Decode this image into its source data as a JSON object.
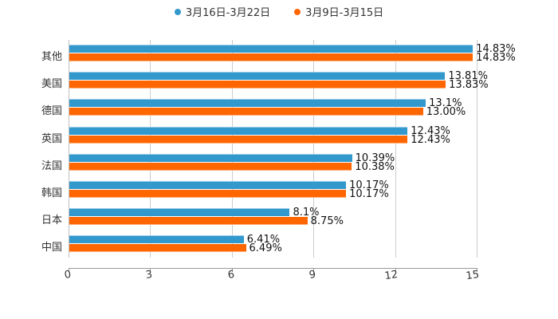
{
  "chart_data": {
    "type": "bar",
    "orientation": "horizontal",
    "title": "",
    "xlabel": "",
    "ylabel": "",
    "categories": [
      "其他",
      "美国",
      "德国",
      "英国",
      "法国",
      "韩国",
      "日本",
      "中国"
    ],
    "series": [
      {
        "name": "3月16日-3月22日",
        "color": "#3398cc",
        "values": [
          14.83,
          13.81,
          13.1,
          12.43,
          10.39,
          10.17,
          8.1,
          6.41
        ],
        "labels": [
          "14.83%",
          "13.81%",
          "13.1%",
          "12.43%",
          "10.39%",
          "10.17%",
          "8.1%",
          "6.41%"
        ]
      },
      {
        "name": "3月9日-3月15日",
        "color": "#ff6600",
        "values": [
          14.83,
          13.83,
          13.0,
          12.43,
          10.38,
          10.17,
          8.75,
          6.49
        ],
        "labels": [
          "14.83%",
          "13.83%",
          "13.00%",
          "12.43%",
          "10.38%",
          "10.17%",
          "8.75%",
          "6.49%"
        ]
      }
    ],
    "xlim": [
      0,
      15
    ],
    "xticks": [
      "0",
      "3",
      "6",
      "9",
      "12",
      "15"
    ],
    "grid": true,
    "legend_position": "top"
  },
  "legend": {
    "items": [
      {
        "label": "3月16日-3月22日",
        "color": "#3398cc"
      },
      {
        "label": "3月9日-3月15日",
        "color": "#ff6600"
      }
    ]
  }
}
